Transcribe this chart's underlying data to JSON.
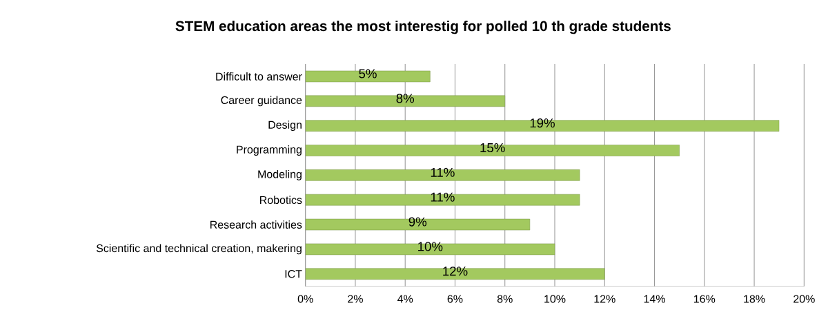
{
  "chart_data": {
    "type": "bar",
    "orientation": "horizontal",
    "title": "STEM education areas  the most interestig for polled  10 th grade students",
    "categories": [
      "Difficult to answer",
      "Career guidance",
      "Design",
      "Programming",
      "Modeling",
      "Robotics",
      "Research activities",
      "Scientific and technical creation, makering",
      "ICT"
    ],
    "values": [
      5,
      8,
      19,
      15,
      11,
      11,
      9,
      10,
      12
    ],
    "value_labels": [
      "5%",
      "8%",
      "19%",
      "15%",
      "11%",
      "11%",
      "9%",
      "10%",
      "12%"
    ],
    "color": "#a3c95f",
    "xlim": [
      0,
      20
    ],
    "xticks": [
      {
        "value": 0,
        "label": "0%"
      },
      {
        "value": 2,
        "label": "2%"
      },
      {
        "value": 4,
        "label": "4%"
      },
      {
        "value": 6,
        "label": "6%"
      },
      {
        "value": 8,
        "label": "8%"
      },
      {
        "value": 10,
        "label": "10%"
      },
      {
        "value": 12,
        "label": "12%"
      },
      {
        "value": 14,
        "label": "14%"
      },
      {
        "value": 16,
        "label": "16%"
      },
      {
        "value": 18,
        "label": "18%"
      },
      {
        "value": 20,
        "label": "20%"
      }
    ],
    "grid": "x"
  }
}
